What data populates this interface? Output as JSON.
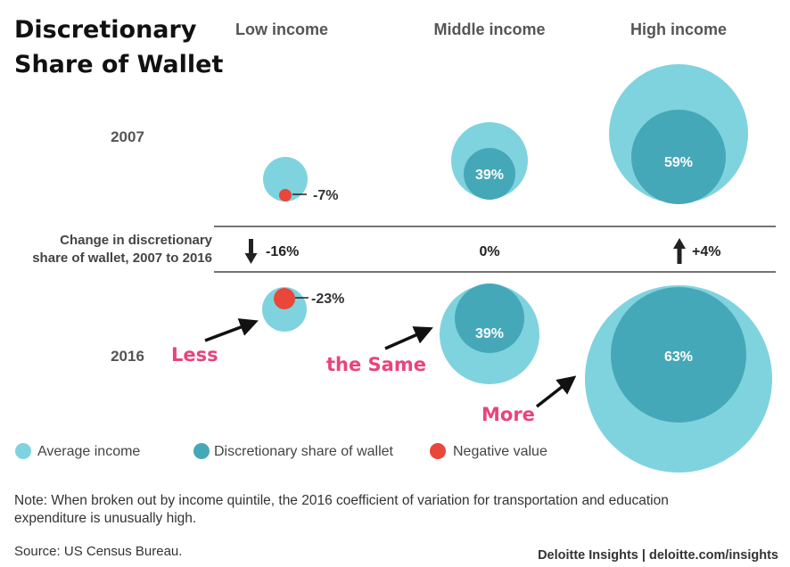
{
  "chart_data": {
    "type": "bubble-comparison",
    "title_lines": [
      "Discretionary",
      "Share of Wallet"
    ],
    "columns": [
      "Low income",
      "Middle income",
      "High income"
    ],
    "rows": [
      "2007",
      "2016"
    ],
    "change_label_lines": [
      "Change in discretionary",
      "share of wallet, 2007 to 2016"
    ],
    "cells": [
      {
        "income": "Low income",
        "year": "2007",
        "share_label": "-7%",
        "negative": true
      },
      {
        "income": "Middle income",
        "year": "2007",
        "share_label": "39%",
        "negative": false
      },
      {
        "income": "High income",
        "year": "2007",
        "share_label": "59%",
        "negative": false
      },
      {
        "income": "Low income",
        "year": "2016",
        "share_label": "-23%",
        "negative": true
      },
      {
        "income": "Middle income",
        "year": "2016",
        "share_label": "39%",
        "negative": false
      },
      {
        "income": "High income",
        "year": "2016",
        "share_label": "63%",
        "negative": false
      }
    ],
    "changes": [
      {
        "income": "Low income",
        "label": "-16%",
        "direction": "down"
      },
      {
        "income": "Middle income",
        "label": "0%",
        "direction": "none"
      },
      {
        "income": "High income",
        "label": "+4%",
        "direction": "up"
      }
    ],
    "legend": [
      {
        "label": "Average income",
        "color": "#7fd3de"
      },
      {
        "label": "Discretionary share of wallet",
        "color": "#45a8b8"
      },
      {
        "label": "Negative value",
        "color": "#e8473a"
      }
    ]
  },
  "annotations": [
    "Less",
    "the Same",
    "More"
  ],
  "note": [
    "Note: When broken out by income quintile, the 2016 coefficient of variation for transportation and education",
    "expenditure is unusually high."
  ],
  "source": "Source: US Census Bureau.",
  "brand": "Deloitte Insights | deloitte.com/insights",
  "colors": {
    "outer": "#7fd3de",
    "inner": "#45a8b8",
    "negative": "#e8473a",
    "callout": "#e8457a"
  }
}
